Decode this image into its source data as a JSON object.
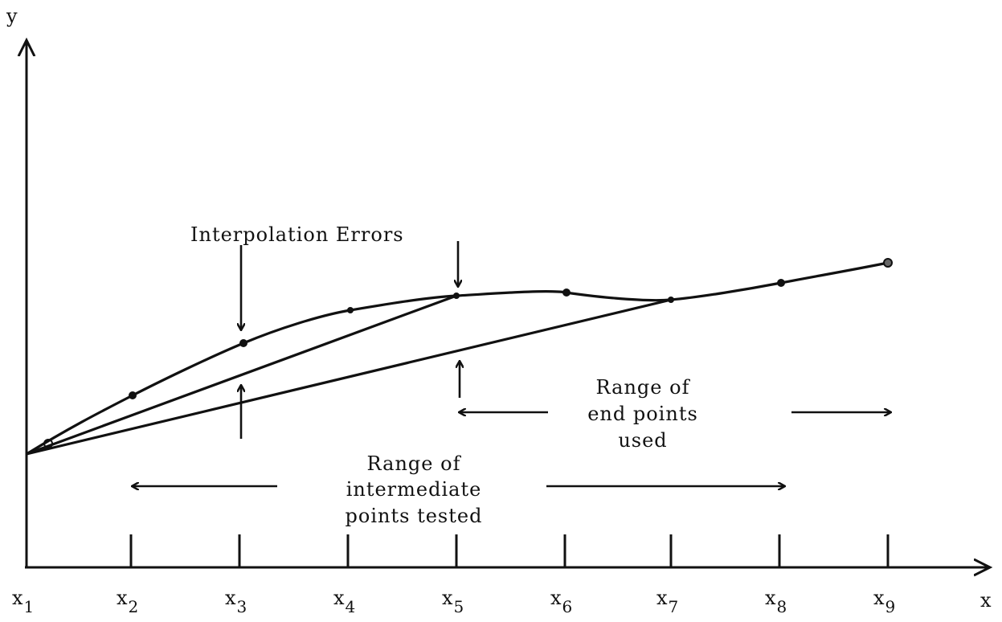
{
  "axes": {
    "y_label": "y",
    "x_label": "x"
  },
  "ticks": [
    {
      "name": "x",
      "sub": "1"
    },
    {
      "name": "x",
      "sub": "2"
    },
    {
      "name": "x",
      "sub": "3"
    },
    {
      "name": "x",
      "sub": "4"
    },
    {
      "name": "x",
      "sub": "5"
    },
    {
      "name": "x",
      "sub": "6"
    },
    {
      "name": "x",
      "sub": "7"
    },
    {
      "name": "x",
      "sub": "8"
    },
    {
      "name": "x",
      "sub": "9"
    }
  ],
  "annotations": {
    "interpolation_errors": "Interpolation Errors",
    "end_points": [
      "Range of",
      "end points",
      "used"
    ],
    "intermediate_points": [
      "Range of",
      "intermediate",
      "points tested"
    ]
  }
}
